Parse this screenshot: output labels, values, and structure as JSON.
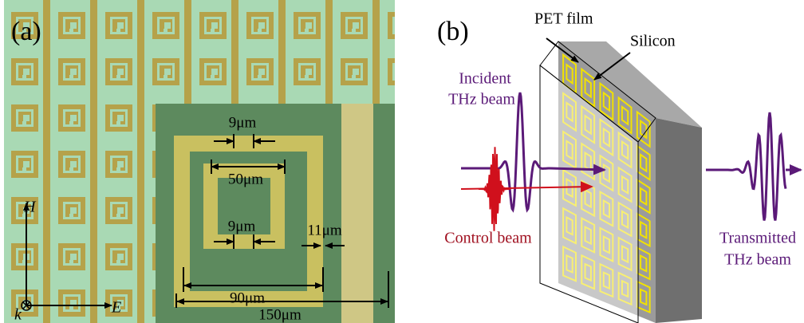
{
  "panel_a": {
    "label": "(a)",
    "dimensions": [
      "9μm",
      "50μm",
      "9μm",
      "11μm",
      "90μm",
      "150μm"
    ],
    "axes": {
      "h": "H",
      "e": "E",
      "k": "k"
    }
  },
  "panel_b": {
    "label": "(b)",
    "pet_film": "PET film",
    "silicon": "Silicon",
    "incident": [
      "Incident",
      "THz beam"
    ],
    "control": "Control beam",
    "transmitted": [
      "Transmitted",
      "THz beam"
    ]
  }
}
